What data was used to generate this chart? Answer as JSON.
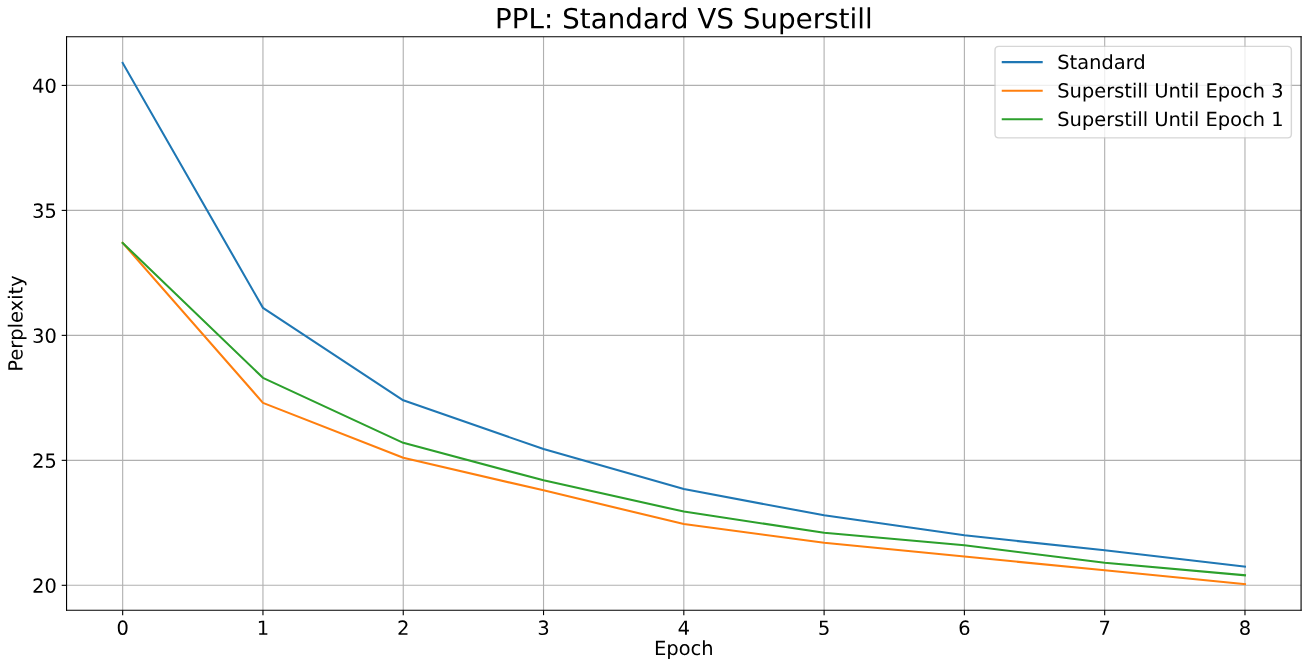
{
  "chart_data": {
    "type": "line",
    "title": "PPL: Standard VS Superstill",
    "xlabel": "Epoch",
    "ylabel": "Perplexity",
    "x": [
      0,
      1,
      2,
      3,
      4,
      5,
      6,
      7,
      8
    ],
    "series": [
      {
        "name": "Standard",
        "color": "#1f77b4",
        "values": [
          40.9,
          31.1,
          27.4,
          25.45,
          23.85,
          22.8,
          22.0,
          21.4,
          20.75
        ]
      },
      {
        "name": "Superstill Until Epoch 3",
        "color": "#ff7f0e",
        "values": [
          33.7,
          27.3,
          25.1,
          23.8,
          22.45,
          21.7,
          21.15,
          20.6,
          20.05
        ]
      },
      {
        "name": "Superstill Until Epoch 1",
        "color": "#2ca02c",
        "values": [
          33.7,
          28.3,
          25.7,
          24.2,
          22.95,
          22.1,
          21.6,
          20.9,
          20.4
        ]
      }
    ],
    "xlim": [
      -0.4,
      8.4
    ],
    "ylim": [
      19.0,
      41.95
    ],
    "xticks": [
      0,
      1,
      2,
      3,
      4,
      5,
      6,
      7,
      8
    ],
    "yticks": [
      20,
      25,
      30,
      35,
      40
    ],
    "grid": true,
    "legend": "top right",
    "marker": "none",
    "line_style": "solid"
  }
}
